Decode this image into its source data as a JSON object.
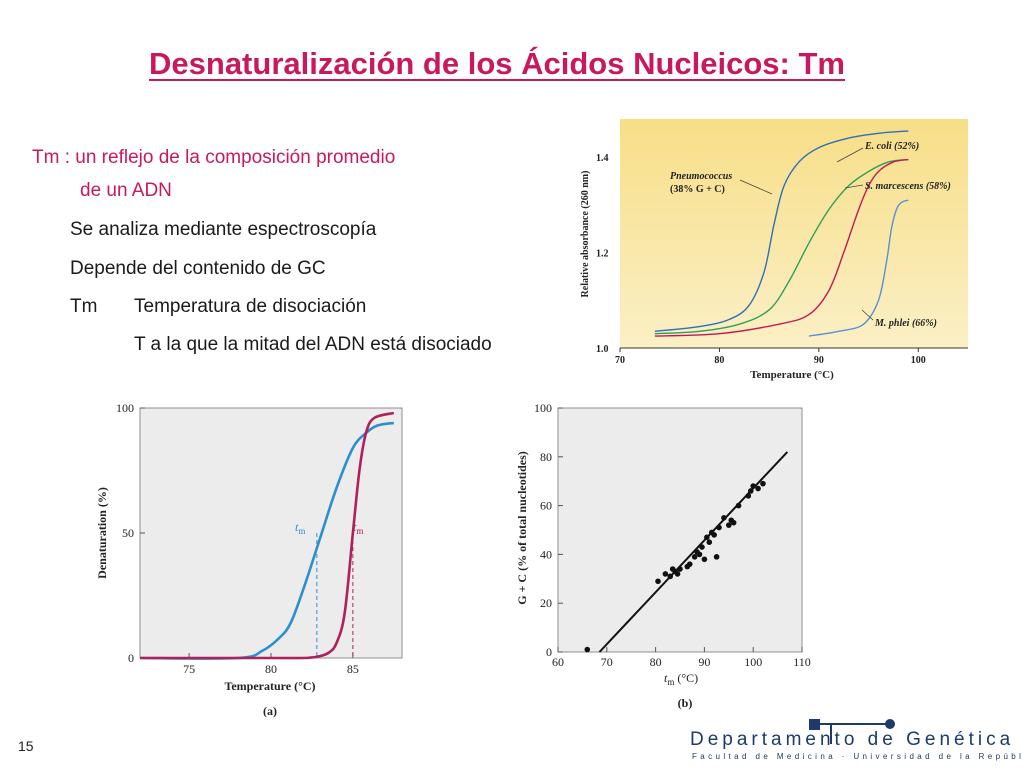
{
  "slide": {
    "title": "Desnaturalización de los Ácidos Nucleicos: Tm",
    "bullets": {
      "main_line1": "Tm : un reflejo de la composición promedio",
      "main_line2": "de un ADN",
      "item1": "Se analiza mediante espectroscopía",
      "item2": "Depende del contenido de GC",
      "item3_term": "Tm",
      "item3_def": "Temperatura de disociación",
      "item3_sub": "T a la que la mitad del ADN está disociado"
    },
    "page_number": "15",
    "footer": {
      "department": "Departamento de Genética",
      "faculty": "Facultad de Medicina · Universidad de la República"
    },
    "colors": {
      "title": "#c8195f",
      "department": "#1e3a6a",
      "chart_bg_top": "#f7de87"
    }
  },
  "chart_data": [
    {
      "type": "line",
      "id": "absorbance",
      "xlabel": "Temperature (°C)",
      "ylabel": "Relative absorbance (260 nm)",
      "xlim": [
        70,
        105
      ],
      "ylim": [
        1.0,
        1.48
      ],
      "xticks": [
        "70",
        "80",
        "90",
        "100"
      ],
      "yticks": [
        "1.0",
        "1.2",
        "1.4"
      ],
      "series": [
        {
          "name": "Pneumococcus (38% G + C)",
          "color": "#2e6fb8",
          "x": [
            73.5,
            78,
            81,
            83,
            84.5,
            85.5,
            86.5,
            88,
            90,
            93,
            96,
            99
          ],
          "y": [
            1.035,
            1.045,
            1.06,
            1.09,
            1.16,
            1.26,
            1.34,
            1.39,
            1.42,
            1.44,
            1.45,
            1.455
          ]
        },
        {
          "name": "E. coli (52%)",
          "color": "#2e9f58",
          "x": [
            73.5,
            78,
            82,
            85,
            87,
            89,
            91,
            93,
            95,
            97,
            99
          ],
          "y": [
            1.03,
            1.035,
            1.05,
            1.08,
            1.14,
            1.22,
            1.29,
            1.34,
            1.37,
            1.39,
            1.395
          ]
        },
        {
          "name": "S. marcescens (58%)",
          "color": "#c2185b",
          "x": [
            73.5,
            80,
            86,
            89,
            91,
            92.5,
            94,
            95,
            96,
            97.5,
            99
          ],
          "y": [
            1.025,
            1.03,
            1.05,
            1.07,
            1.12,
            1.2,
            1.29,
            1.34,
            1.37,
            1.39,
            1.395
          ]
        },
        {
          "name": "M. phlei (66%)",
          "color": "#5a8fd6",
          "x": [
            89,
            92,
            94.5,
            96,
            96.8,
            97.3,
            97.8,
            98.3,
            99
          ],
          "y": [
            1.025,
            1.035,
            1.05,
            1.1,
            1.18,
            1.25,
            1.29,
            1.305,
            1.31
          ]
        }
      ],
      "annotations": [
        "Pneumococcus",
        "(38% G + C)",
        "E. coli (52%)",
        "S. marcescens (58%)",
        "M. phlei (66%)"
      ]
    },
    {
      "type": "line",
      "id": "denaturation",
      "caption": "(a)",
      "xlabel": "Temperature (°C)",
      "ylabel": "Denaturation (%)",
      "xlim": [
        72,
        88
      ],
      "ylim": [
        0,
        100
      ],
      "xticks": [
        "75",
        "80",
        "85"
      ],
      "yticks": [
        "0",
        "50",
        "100"
      ],
      "tm_label": "t",
      "tm_sub": "m",
      "series": [
        {
          "color": "#2b8fce",
          "x": [
            72,
            78,
            79.5,
            80.5,
            81.2,
            82,
            83,
            84,
            85,
            85.8,
            86.5,
            87.5
          ],
          "y": [
            0,
            0,
            3,
            8,
            14,
            28,
            48,
            68,
            84,
            90,
            93,
            94
          ]
        },
        {
          "color": "#b0205a",
          "x": [
            72,
            80,
            82,
            82.8,
            83.5,
            84,
            84.5,
            85,
            85.4,
            85.8,
            86.3,
            87.5
          ],
          "y": [
            0,
            0,
            0,
            0.5,
            2,
            6,
            18,
            50,
            75,
            90,
            96,
            98
          ]
        }
      ],
      "tm_values": [
        82.8,
        85.0
      ]
    },
    {
      "type": "scatter",
      "id": "gc_vs_tm",
      "caption": "(b)",
      "xlabel": "t",
      "xlabel_sub": "m",
      "xlabel_unit": "(°C)",
      "ylabel": "G + C (% of total nucleotides)",
      "xlim": [
        60,
        110
      ],
      "ylim": [
        0,
        100
      ],
      "xticks": [
        "60",
        "70",
        "80",
        "90",
        "100",
        "110"
      ],
      "yticks": [
        "0",
        "20",
        "40",
        "60",
        "80",
        "100"
      ],
      "fit_line": {
        "x": [
          68.5,
          107
        ],
        "y": [
          0,
          82
        ]
      },
      "x": [
        66,
        80.5,
        82,
        83,
        83.5,
        84,
        84.5,
        85,
        86.5,
        87,
        88,
        88.5,
        89,
        89.5,
        90,
        90.5,
        91,
        91.5,
        92,
        92.5,
        93,
        94,
        95,
        95.5,
        96,
        97,
        99,
        99.5,
        100,
        101,
        102
      ],
      "y": [
        1,
        29,
        32,
        31,
        34,
        33,
        32,
        34,
        35,
        36,
        39,
        41,
        40,
        43,
        38,
        47,
        45,
        49,
        48,
        39,
        51,
        55,
        52,
        54,
        53,
        60,
        64,
        66,
        68,
        67,
        69
      ]
    }
  ]
}
